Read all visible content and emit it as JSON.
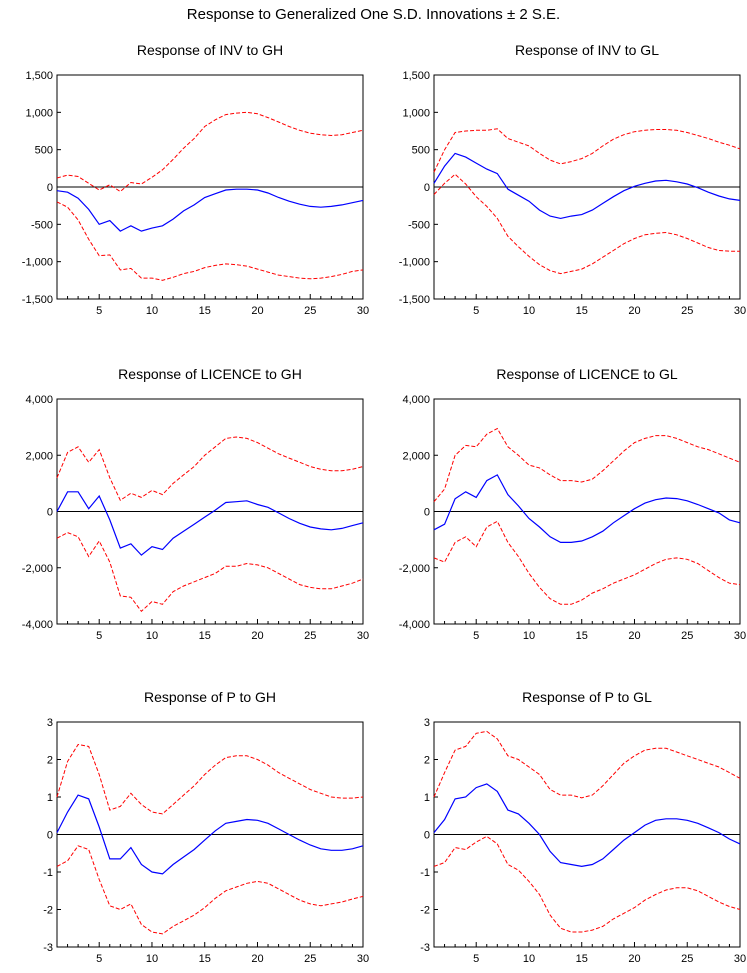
{
  "page": {
    "title": "Response to Generalized One S.D. Innovations ± 2 S.E."
  },
  "colors": {
    "response": "#0000ff",
    "band": "#ff0000",
    "axis": "#000000"
  },
  "chart_data": [
    {
      "type": "line",
      "title": "Response of INV to GH",
      "xlim": [
        1,
        30
      ],
      "ylim": [
        -1500,
        1500
      ],
      "xticks": [
        5,
        10,
        15,
        20,
        25,
        30
      ],
      "yticks": [
        -1500,
        -1000,
        -500,
        0,
        500,
        1000,
        1500
      ],
      "ytick_labels": [
        "-1,500",
        "-1,000",
        "-500",
        "0",
        "500",
        "1,000",
        "1,500"
      ],
      "x": [
        1,
        2,
        3,
        4,
        5,
        6,
        7,
        8,
        9,
        10,
        11,
        12,
        13,
        14,
        15,
        16,
        17,
        18,
        19,
        20,
        21,
        22,
        23,
        24,
        25,
        26,
        27,
        28,
        29,
        30
      ],
      "series": [
        {
          "role": "response",
          "values": [
            -50,
            -70,
            -150,
            -300,
            -500,
            -450,
            -590,
            -520,
            -590,
            -550,
            -520,
            -430,
            -320,
            -240,
            -140,
            -90,
            -40,
            -30,
            -30,
            -40,
            -80,
            -140,
            -190,
            -230,
            -260,
            -270,
            -260,
            -240,
            -210,
            -180
          ]
        },
        {
          "role": "upper",
          "values": [
            120,
            160,
            140,
            50,
            -40,
            30,
            -60,
            60,
            40,
            130,
            230,
            370,
            520,
            650,
            810,
            900,
            970,
            990,
            1000,
            980,
            930,
            870,
            810,
            760,
            720,
            700,
            690,
            700,
            730,
            760
          ]
        },
        {
          "role": "lower",
          "values": [
            -200,
            -270,
            -440,
            -700,
            -920,
            -910,
            -1110,
            -1090,
            -1220,
            -1220,
            -1250,
            -1210,
            -1160,
            -1130,
            -1080,
            -1050,
            -1030,
            -1040,
            -1060,
            -1100,
            -1140,
            -1180,
            -1200,
            -1220,
            -1230,
            -1220,
            -1200,
            -1170,
            -1130,
            -1110
          ]
        }
      ]
    },
    {
      "type": "line",
      "title": "Response of INV to GL",
      "xlim": [
        1,
        30
      ],
      "ylim": [
        -1500,
        1500
      ],
      "xticks": [
        5,
        10,
        15,
        20,
        25,
        30
      ],
      "yticks": [
        -1500,
        -1000,
        -500,
        0,
        500,
        1000,
        1500
      ],
      "ytick_labels": [
        "-1,500",
        "-1,000",
        "-500",
        "0",
        "500",
        "1,000",
        "1,500"
      ],
      "x": [
        1,
        2,
        3,
        4,
        5,
        6,
        7,
        8,
        9,
        10,
        11,
        12,
        13,
        14,
        15,
        16,
        17,
        18,
        19,
        20,
        21,
        22,
        23,
        24,
        25,
        26,
        27,
        28,
        29,
        30
      ],
      "series": [
        {
          "role": "response",
          "values": [
            50,
            280,
            450,
            400,
            320,
            240,
            180,
            -30,
            -110,
            -190,
            -310,
            -390,
            -420,
            -390,
            -370,
            -310,
            -220,
            -130,
            -50,
            10,
            50,
            80,
            90,
            70,
            40,
            -10,
            -70,
            -120,
            -160,
            -180
          ]
        },
        {
          "role": "upper",
          "values": [
            200,
            500,
            730,
            750,
            760,
            760,
            780,
            650,
            600,
            550,
            450,
            360,
            310,
            340,
            380,
            450,
            550,
            640,
            700,
            740,
            760,
            770,
            770,
            760,
            730,
            690,
            650,
            600,
            560,
            510
          ]
        },
        {
          "role": "lower",
          "values": [
            -100,
            50,
            170,
            40,
            -130,
            -260,
            -420,
            -660,
            -800,
            -930,
            -1040,
            -1120,
            -1160,
            -1130,
            -1100,
            -1030,
            -940,
            -850,
            -760,
            -690,
            -640,
            -620,
            -610,
            -640,
            -690,
            -750,
            -810,
            -850,
            -860,
            -860
          ]
        }
      ]
    },
    {
      "type": "line",
      "title": "Response of LICENCE to GH",
      "xlim": [
        1,
        30
      ],
      "ylim": [
        -4000,
        4000
      ],
      "xticks": [
        5,
        10,
        15,
        20,
        25,
        30
      ],
      "yticks": [
        -4000,
        -2000,
        0,
        2000,
        4000
      ],
      "ytick_labels": [
        "-4,000",
        "-2,000",
        "0",
        "2,000",
        "4,000"
      ],
      "x": [
        1,
        2,
        3,
        4,
        5,
        6,
        7,
        8,
        9,
        10,
        11,
        12,
        13,
        14,
        15,
        16,
        17,
        18,
        19,
        20,
        21,
        22,
        23,
        24,
        25,
        26,
        27,
        28,
        29,
        30
      ],
      "series": [
        {
          "role": "response",
          "values": [
            0,
            700,
            700,
            100,
            550,
            -300,
            -1300,
            -1150,
            -1550,
            -1250,
            -1350,
            -950,
            -700,
            -450,
            -200,
            50,
            320,
            350,
            380,
            250,
            150,
            -50,
            -250,
            -420,
            -550,
            -620,
            -650,
            -600,
            -500,
            -400
          ]
        },
        {
          "role": "upper",
          "values": [
            1200,
            2100,
            2300,
            1750,
            2200,
            1200,
            400,
            650,
            500,
            750,
            600,
            1000,
            1300,
            1600,
            2000,
            2300,
            2600,
            2650,
            2600,
            2450,
            2250,
            2050,
            1900,
            1750,
            1600,
            1500,
            1450,
            1450,
            1500,
            1600
          ]
        },
        {
          "role": "lower",
          "values": [
            -950,
            -750,
            -900,
            -1600,
            -1050,
            -1800,
            -3000,
            -3050,
            -3550,
            -3200,
            -3300,
            -2850,
            -2650,
            -2500,
            -2350,
            -2200,
            -1950,
            -1950,
            -1850,
            -1900,
            -2000,
            -2200,
            -2400,
            -2600,
            -2700,
            -2750,
            -2750,
            -2650,
            -2550,
            -2400
          ]
        }
      ]
    },
    {
      "type": "line",
      "title": "Response of LICENCE to GL",
      "xlim": [
        1,
        30
      ],
      "ylim": [
        -4000,
        4000
      ],
      "xticks": [
        5,
        10,
        15,
        20,
        25,
        30
      ],
      "yticks": [
        -4000,
        -2000,
        0,
        2000,
        4000
      ],
      "ytick_labels": [
        "-4,000",
        "-2,000",
        "0",
        "2,000",
        "4,000"
      ],
      "x": [
        1,
        2,
        3,
        4,
        5,
        6,
        7,
        8,
        9,
        10,
        11,
        12,
        13,
        14,
        15,
        16,
        17,
        18,
        19,
        20,
        21,
        22,
        23,
        24,
        25,
        26,
        27,
        28,
        29,
        30
      ],
      "series": [
        {
          "role": "response",
          "values": [
            -650,
            -450,
            450,
            700,
            500,
            1100,
            1300,
            600,
            200,
            -250,
            -550,
            -900,
            -1100,
            -1100,
            -1050,
            -900,
            -700,
            -400,
            -150,
            100,
            300,
            420,
            480,
            460,
            380,
            250,
            100,
            -50,
            -300,
            -400
          ]
        },
        {
          "role": "upper",
          "values": [
            350,
            800,
            2000,
            2350,
            2300,
            2750,
            2950,
            2300,
            2000,
            1650,
            1550,
            1300,
            1100,
            1100,
            1050,
            1150,
            1450,
            1800,
            2150,
            2450,
            2600,
            2700,
            2700,
            2600,
            2450,
            2300,
            2200,
            2050,
            1900,
            1750
          ]
        },
        {
          "role": "lower",
          "values": [
            -1650,
            -1800,
            -1100,
            -900,
            -1250,
            -550,
            -350,
            -1100,
            -1600,
            -2200,
            -2700,
            -3100,
            -3300,
            -3300,
            -3150,
            -2900,
            -2750,
            -2550,
            -2400,
            -2250,
            -2050,
            -1850,
            -1700,
            -1650,
            -1700,
            -1850,
            -2100,
            -2350,
            -2550,
            -2600
          ]
        }
      ]
    },
    {
      "type": "line",
      "title": "Response of P to GH",
      "xlim": [
        1,
        30
      ],
      "ylim": [
        -3,
        3
      ],
      "xticks": [
        5,
        10,
        15,
        20,
        25,
        30
      ],
      "yticks": [
        -3,
        -2,
        -1,
        0,
        1,
        2,
        3
      ],
      "ytick_labels": [
        "-3",
        "-2",
        "-1",
        "0",
        "1",
        "2",
        "3"
      ],
      "x": [
        1,
        2,
        3,
        4,
        5,
        6,
        7,
        8,
        9,
        10,
        11,
        12,
        13,
        14,
        15,
        16,
        17,
        18,
        19,
        20,
        21,
        22,
        23,
        24,
        25,
        26,
        27,
        28,
        29,
        30
      ],
      "series": [
        {
          "role": "response",
          "values": [
            0.05,
            0.6,
            1.05,
            0.95,
            0.2,
            -0.65,
            -0.65,
            -0.35,
            -0.8,
            -1.0,
            -1.05,
            -0.8,
            -0.6,
            -0.4,
            -0.15,
            0.1,
            0.3,
            0.35,
            0.4,
            0.38,
            0.3,
            0.15,
            0.0,
            -0.15,
            -0.28,
            -0.38,
            -0.42,
            -0.42,
            -0.38,
            -0.3
          ]
        },
        {
          "role": "upper",
          "values": [
            1.0,
            1.95,
            2.4,
            2.35,
            1.6,
            0.65,
            0.75,
            1.1,
            0.8,
            0.6,
            0.55,
            0.8,
            1.05,
            1.3,
            1.6,
            1.85,
            2.05,
            2.1,
            2.1,
            2.0,
            1.85,
            1.65,
            1.5,
            1.35,
            1.2,
            1.1,
            1.0,
            0.97,
            0.97,
            1.0
          ]
        },
        {
          "role": "lower",
          "values": [
            -0.85,
            -0.7,
            -0.3,
            -0.4,
            -1.2,
            -1.9,
            -2.0,
            -1.85,
            -2.4,
            -2.6,
            -2.65,
            -2.45,
            -2.3,
            -2.15,
            -1.95,
            -1.7,
            -1.5,
            -1.4,
            -1.3,
            -1.25,
            -1.3,
            -1.45,
            -1.6,
            -1.75,
            -1.85,
            -1.9,
            -1.85,
            -1.8,
            -1.72,
            -1.65
          ]
        }
      ]
    },
    {
      "type": "line",
      "title": "Response of P to GL",
      "xlim": [
        1,
        30
      ],
      "ylim": [
        -3,
        3
      ],
      "xticks": [
        5,
        10,
        15,
        20,
        25,
        30
      ],
      "yticks": [
        -3,
        -2,
        -1,
        0,
        1,
        2,
        3
      ],
      "ytick_labels": [
        "-3",
        "-2",
        "-1",
        "0",
        "1",
        "2",
        "3"
      ],
      "x": [
        1,
        2,
        3,
        4,
        5,
        6,
        7,
        8,
        9,
        10,
        11,
        12,
        13,
        14,
        15,
        16,
        17,
        18,
        19,
        20,
        21,
        22,
        23,
        24,
        25,
        26,
        27,
        28,
        29,
        30
      ],
      "series": [
        {
          "role": "response",
          "values": [
            0.05,
            0.4,
            0.95,
            1.0,
            1.25,
            1.35,
            1.15,
            0.65,
            0.55,
            0.3,
            0.0,
            -0.45,
            -0.75,
            -0.8,
            -0.85,
            -0.8,
            -0.65,
            -0.4,
            -0.15,
            0.05,
            0.25,
            0.38,
            0.42,
            0.42,
            0.38,
            0.3,
            0.18,
            0.05,
            -0.12,
            -0.25
          ]
        },
        {
          "role": "upper",
          "values": [
            1.0,
            1.65,
            2.25,
            2.35,
            2.7,
            2.75,
            2.55,
            2.1,
            2.0,
            1.8,
            1.6,
            1.2,
            1.05,
            1.05,
            0.98,
            1.05,
            1.3,
            1.6,
            1.9,
            2.1,
            2.25,
            2.3,
            2.3,
            2.2,
            2.1,
            2.0,
            1.9,
            1.8,
            1.65,
            1.5
          ]
        },
        {
          "role": "lower",
          "values": [
            -0.85,
            -0.75,
            -0.35,
            -0.4,
            -0.2,
            -0.05,
            -0.25,
            -0.8,
            -0.95,
            -1.25,
            -1.6,
            -2.15,
            -2.5,
            -2.6,
            -2.6,
            -2.55,
            -2.45,
            -2.25,
            -2.1,
            -1.95,
            -1.75,
            -1.6,
            -1.48,
            -1.42,
            -1.42,
            -1.5,
            -1.65,
            -1.8,
            -1.92,
            -2.0
          ]
        }
      ]
    }
  ]
}
